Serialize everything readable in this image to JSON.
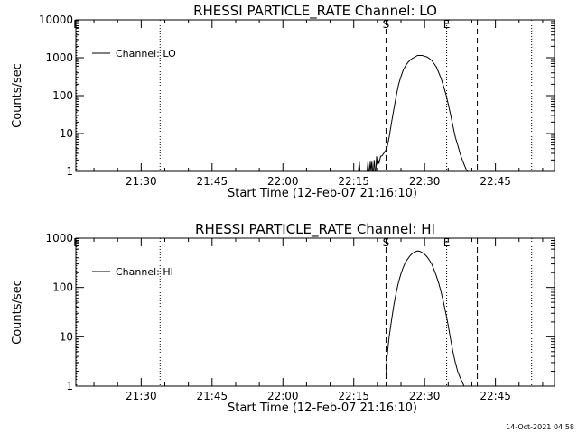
{
  "chart_data": [
    {
      "type": "line",
      "title": "RHESSI PARTICLE_RATE Channel: LO",
      "xlabel": "Start Time (12-Feb-07 21:16:10)",
      "ylabel": "Counts/sec",
      "yscale": "log",
      "ylim": [
        1,
        10000
      ],
      "xlim": [
        "21:16:10",
        "22:57:30"
      ],
      "x_tick_labels": [
        "21:30",
        "21:45",
        "22:00",
        "22:15",
        "22:30",
        "22:45"
      ],
      "x_ticks": [
        "21:30",
        "21:45",
        "22:00",
        "22:15",
        "22:30",
        "22:45"
      ],
      "y_tick_labels": [
        "1",
        "10",
        "100",
        "1000",
        "10000"
      ],
      "y_ticks": [
        1,
        10,
        100,
        1000,
        10000
      ],
      "legend": {
        "entries": [
          "Channel: LO"
        ],
        "placement": "top-left"
      },
      "markers": [
        {
          "label": "E",
          "time": "21:16:20",
          "style": "dotted"
        },
        {
          "label": "",
          "time": "21:34:00",
          "style": "dotted"
        },
        {
          "label": "S",
          "time": "22:21:50",
          "style": "dashed"
        },
        {
          "label": "E",
          "time": "22:34:40",
          "style": "dotted"
        },
        {
          "label": "",
          "time": "22:41:10",
          "style": "dashed"
        },
        {
          "label": "",
          "time": "22:52:40",
          "style": "dotted"
        }
      ],
      "series": [
        {
          "name": "Channel: LO",
          "x": [
            "22:16:00",
            "22:16:10",
            "22:16:20",
            "22:16:30",
            "22:16:40",
            "22:16:50",
            "22:17:00",
            "22:17:10",
            "22:17:20",
            "22:17:30",
            "22:17:40",
            "22:17:50",
            "22:18:00",
            "22:18:10",
            "22:18:20",
            "22:18:30",
            "22:18:40",
            "22:18:50",
            "22:19:00",
            "22:19:10",
            "22:19:20",
            "22:19:30",
            "22:19:40",
            "22:19:50",
            "22:20:00",
            "22:20:10",
            "22:20:20",
            "22:20:40",
            "22:21:00",
            "22:21:30",
            "22:22:00",
            "22:22:30",
            "22:23:00",
            "22:23:30",
            "22:24:00",
            "22:24:30",
            "22:25:00",
            "22:25:30",
            "22:26:00",
            "22:26:30",
            "22:27:00",
            "22:27:30",
            "22:28:00",
            "22:28:30",
            "22:29:00",
            "22:29:30",
            "22:30:00",
            "22:30:30",
            "22:31:00",
            "22:31:30",
            "22:32:00",
            "22:32:30",
            "22:33:00",
            "22:33:30",
            "22:34:00",
            "22:34:30",
            "22:35:00",
            "22:35:30",
            "22:36:00",
            "22:36:30",
            "22:37:00",
            "22:37:30",
            "22:38:00",
            "22:38:30",
            "22:38:50",
            "22:39:10"
          ],
          "y": [
            1,
            1.8,
            1,
            1,
            1,
            1,
            1,
            1,
            1,
            1,
            1,
            1,
            1.8,
            1,
            1,
            1.8,
            1,
            1.8,
            1,
            1,
            2,
            1,
            1,
            2.5,
            1.5,
            2,
            1.6,
            2.5,
            2.6,
            3.2,
            4,
            8,
            20,
            45,
            100,
            200,
            320,
            480,
            620,
            760,
            880,
            980,
            1050,
            1150,
            1150,
            1150,
            1100,
            1050,
            950,
            850,
            700,
            570,
            400,
            280,
            180,
            110,
            60,
            32,
            16,
            8,
            5,
            3,
            2,
            1.4,
            1.1,
            1
          ]
        }
      ]
    },
    {
      "type": "line",
      "title": "RHESSI PARTICLE_RATE Channel: HI",
      "xlabel": "Start Time (12-Feb-07 21:16:10)",
      "ylabel": "Counts/sec",
      "yscale": "log",
      "ylim": [
        1,
        1000
      ],
      "xlim": [
        "21:16:10",
        "22:57:30"
      ],
      "x_tick_labels": [
        "21:30",
        "21:45",
        "22:00",
        "22:15",
        "22:30",
        "22:45"
      ],
      "x_ticks": [
        "21:30",
        "21:45",
        "22:00",
        "22:15",
        "22:30",
        "22:45"
      ],
      "y_tick_labels": [
        "1",
        "10",
        "100",
        "1000"
      ],
      "y_ticks": [
        1,
        10,
        100,
        1000
      ],
      "legend": {
        "entries": [
          "Channel: HI"
        ],
        "placement": "top-left"
      },
      "markers": [
        {
          "label": "E",
          "time": "21:16:20",
          "style": "dotted"
        },
        {
          "label": "",
          "time": "21:34:00",
          "style": "dotted"
        },
        {
          "label": "S",
          "time": "22:21:50",
          "style": "dashed"
        },
        {
          "label": "E",
          "time": "22:34:40",
          "style": "dotted"
        },
        {
          "label": "",
          "time": "22:41:10",
          "style": "dashed"
        },
        {
          "label": "",
          "time": "22:52:40",
          "style": "dotted"
        }
      ],
      "series": [
        {
          "name": "Channel: HI",
          "x": [
            "22:21:50",
            "22:22:00",
            "22:22:30",
            "22:23:00",
            "22:23:30",
            "22:24:00",
            "22:24:30",
            "22:25:00",
            "22:25:30",
            "22:26:00",
            "22:26:30",
            "22:27:00",
            "22:27:30",
            "22:28:00",
            "22:28:30",
            "22:29:00",
            "22:29:30",
            "22:30:00",
            "22:30:30",
            "22:31:00",
            "22:31:30",
            "22:32:00",
            "22:32:30",
            "22:33:00",
            "22:33:30",
            "22:34:00",
            "22:34:30",
            "22:35:00",
            "22:35:30",
            "22:36:00",
            "22:36:30",
            "22:37:00",
            "22:37:30",
            "22:38:00",
            "22:38:20"
          ],
          "y": [
            1.7,
            3.5,
            10,
            22,
            45,
            80,
            130,
            190,
            260,
            330,
            390,
            450,
            500,
            530,
            550,
            540,
            510,
            470,
            420,
            360,
            300,
            230,
            170,
            120,
            80,
            50,
            30,
            17,
            9,
            5,
            3,
            2,
            1.5,
            1.2,
            1
          ]
        }
      ]
    }
  ],
  "footer": {
    "timestamp": "14-Oct-2021 04:58"
  }
}
